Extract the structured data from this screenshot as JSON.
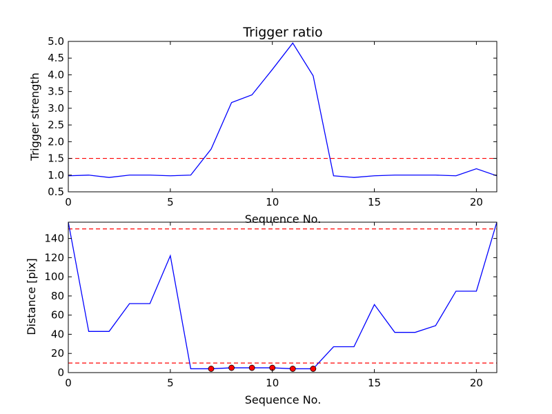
{
  "colors": {
    "line": "#0000ff",
    "threshold": "#ff0000",
    "marker_fill": "#ff0000",
    "marker_edge": "#000000",
    "axes": "#000000",
    "background": "#ffffff"
  },
  "chart_data": [
    {
      "type": "line",
      "title": "Trigger ratio",
      "xlabel": "Sequence No.",
      "ylabel": "Trigger strength",
      "xlim": [
        0,
        21
      ],
      "ylim": [
        0.5,
        5.0
      ],
      "xticks": [
        0,
        5,
        10,
        15,
        20
      ],
      "xtick_labels": [
        "0",
        "5",
        "10",
        "15",
        "20"
      ],
      "yticks": [
        0.5,
        1.0,
        1.5,
        2.0,
        2.5,
        3.0,
        3.5,
        4.0,
        4.5,
        5.0
      ],
      "ytick_labels": [
        "0.5",
        "1.0",
        "1.5",
        "2.0",
        "2.5",
        "3.0",
        "3.5",
        "4.0",
        "4.5",
        "5.0"
      ],
      "grid": false,
      "x": [
        0,
        1,
        2,
        3,
        4,
        5,
        6,
        7,
        8,
        9,
        10,
        11,
        12,
        13,
        14,
        15,
        16,
        17,
        18,
        19,
        20,
        21
      ],
      "series": [
        {
          "values": [
            0.98,
            1.0,
            0.93,
            1.0,
            1.0,
            0.98,
            1.0,
            1.78,
            3.17,
            3.4,
            4.16,
            4.95,
            3.97,
            0.98,
            0.93,
            0.98,
            1.0,
            1.0,
            1.0,
            0.98,
            1.19,
            0.98
          ]
        }
      ],
      "hlines": [
        1.5
      ]
    },
    {
      "type": "line",
      "xlabel": "Sequence No.",
      "ylabel": "Distance [pix]",
      "xlim": [
        0,
        21
      ],
      "ylim": [
        0,
        157
      ],
      "xticks": [
        0,
        5,
        10,
        15,
        20
      ],
      "xtick_labels": [
        "0",
        "5",
        "10",
        "15",
        "20"
      ],
      "yticks": [
        0,
        20,
        40,
        60,
        80,
        100,
        120,
        140
      ],
      "ytick_labels": [
        "0",
        "20",
        "40",
        "60",
        "80",
        "100",
        "120",
        "140"
      ],
      "grid": false,
      "x": [
        0,
        1,
        2,
        3,
        4,
        5,
        6,
        7,
        8,
        9,
        10,
        11,
        12,
        13,
        14,
        15,
        16,
        17,
        18,
        19,
        20,
        21
      ],
      "series": [
        {
          "values": [
            157,
            43,
            43,
            72,
            72,
            122,
            4,
            4,
            5,
            5,
            5,
            4,
            4,
            27,
            27,
            71,
            42,
            42,
            49,
            85,
            85,
            157
          ]
        }
      ],
      "markers": {
        "x": [
          7,
          8,
          9,
          10,
          11,
          12
        ],
        "y": [
          4,
          5,
          5,
          5,
          4,
          4
        ]
      },
      "hlines": [
        10,
        150
      ]
    }
  ]
}
